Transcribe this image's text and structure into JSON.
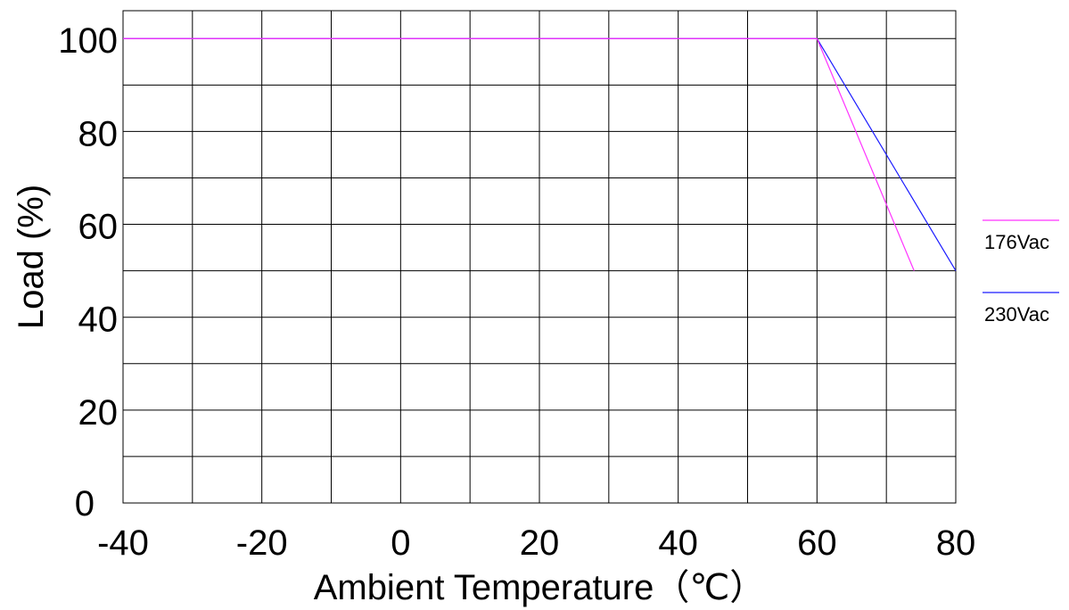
{
  "chart_data": {
    "type": "line",
    "title": "",
    "xlabel": "Ambient Temperature（℃）",
    "ylabel": "Load (%)",
    "xlim": [
      -40,
      80
    ],
    "ylim": [
      0,
      100
    ],
    "x_ticks": [
      -40,
      -20,
      0,
      20,
      40,
      60,
      80
    ],
    "y_ticks": [
      0,
      20,
      40,
      60,
      80,
      100
    ],
    "x_tick_labels": [
      "-40",
      "-20",
      "0",
      "20",
      "40",
      "60",
      "80"
    ],
    "y_tick_labels": [
      "0",
      "20",
      "40",
      "60",
      "80",
      "100"
    ],
    "grid": true,
    "grid_x_step": 10,
    "grid_y_step": 10,
    "legend_position": "right",
    "series": [
      {
        "name": "176Vac",
        "color": "#ff33ff",
        "points": [
          [
            -40,
            100
          ],
          [
            60,
            100
          ],
          [
            74,
            50
          ]
        ]
      },
      {
        "name": "230Vac",
        "color": "#1a1aff",
        "points": [
          [
            -40,
            100
          ],
          [
            60,
            100
          ],
          [
            80,
            50
          ]
        ]
      }
    ]
  }
}
